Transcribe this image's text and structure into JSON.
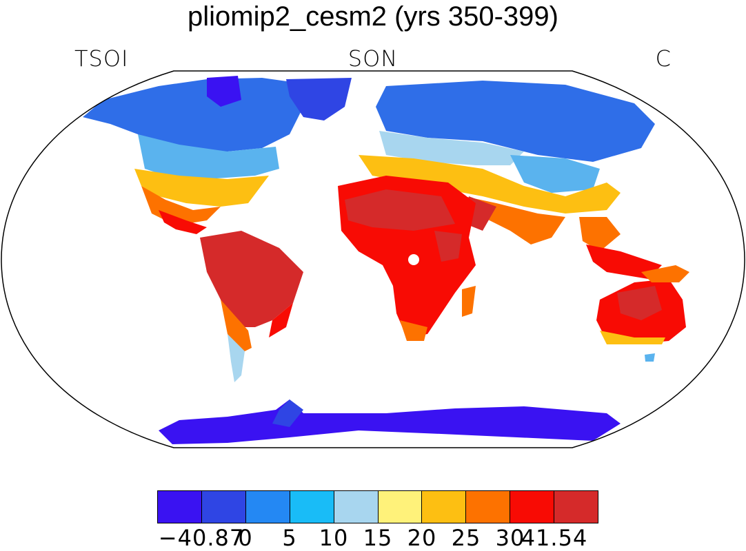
{
  "title": "pliomip2_cesm2 (yrs 350-399)",
  "subtitle": {
    "left": "TSOI",
    "center": "SON",
    "right": "C"
  },
  "colorbar": {
    "colors": [
      "#3a12f2",
      "#2f45e4",
      "#2488f3",
      "#19bcf7",
      "#a8d6ef",
      "#fff27a",
      "#fdbf12",
      "#fd7200",
      "#f80b04",
      "#d52a2a"
    ],
    "labels": [
      "−40.87",
      "0",
      "5",
      "10",
      "15",
      "20",
      "25",
      "30",
      "41.54"
    ]
  }
}
